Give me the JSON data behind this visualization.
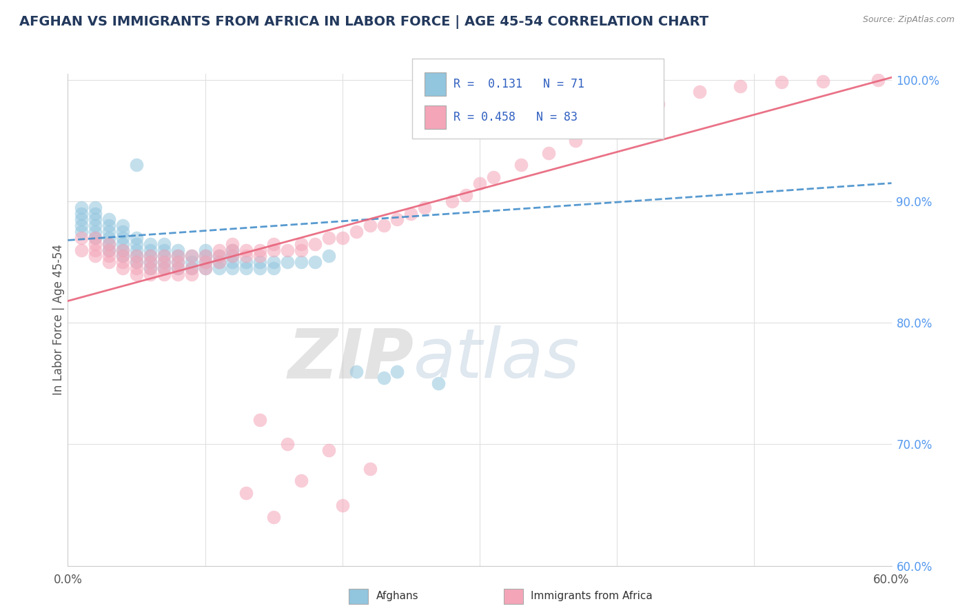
{
  "title": "AFGHAN VS IMMIGRANTS FROM AFRICA IN LABOR FORCE | AGE 45-54 CORRELATION CHART",
  "source": "Source: ZipAtlas.com",
  "ylabel": "In Labor Force | Age 45-54",
  "xlim": [
    0.0,
    0.6
  ],
  "ylim": [
    0.6,
    1.005
  ],
  "xticks": [
    0.0,
    0.1,
    0.2,
    0.3,
    0.4,
    0.5,
    0.6
  ],
  "xtick_labels": [
    "0.0%",
    "",
    "",
    "",
    "",
    "",
    "60.0%"
  ],
  "ytick_labels_right": [
    "60.0%",
    "70.0%",
    "80.0%",
    "90.0%",
    "100.0%"
  ],
  "ytick_positions_right": [
    0.6,
    0.7,
    0.8,
    0.9,
    1.0
  ],
  "legend1_R": "0.131",
  "legend1_N": "71",
  "legend2_R": "0.458",
  "legend2_N": "83",
  "legend1_label": "Afghans",
  "legend2_label": "Immigrants from Africa",
  "blue_color": "#92c5de",
  "pink_color": "#f4a5b8",
  "blue_line_color": "#3a88c8",
  "pink_line_color": "#e8637a",
  "title_color": "#23395d",
  "source_color": "#888888",
  "r_value_color": "#3060c0",
  "watermark_color": "#d8d8d8",
  "background_color": "#ffffff",
  "grid_color": "#e0e0e0",
  "blue_scatter_x": [
    0.01,
    0.01,
    0.01,
    0.01,
    0.01,
    0.02,
    0.02,
    0.02,
    0.02,
    0.02,
    0.02,
    0.03,
    0.03,
    0.03,
    0.03,
    0.03,
    0.03,
    0.04,
    0.04,
    0.04,
    0.04,
    0.04,
    0.04,
    0.05,
    0.05,
    0.05,
    0.05,
    0.05,
    0.05,
    0.06,
    0.06,
    0.06,
    0.06,
    0.06,
    0.07,
    0.07,
    0.07,
    0.07,
    0.07,
    0.08,
    0.08,
    0.08,
    0.08,
    0.09,
    0.09,
    0.09,
    0.1,
    0.1,
    0.1,
    0.1,
    0.11,
    0.11,
    0.11,
    0.12,
    0.12,
    0.12,
    0.12,
    0.13,
    0.13,
    0.14,
    0.14,
    0.15,
    0.15,
    0.16,
    0.17,
    0.18,
    0.19,
    0.21,
    0.23,
    0.24,
    0.27
  ],
  "blue_scatter_y": [
    0.875,
    0.88,
    0.885,
    0.89,
    0.895,
    0.87,
    0.875,
    0.88,
    0.885,
    0.89,
    0.895,
    0.86,
    0.865,
    0.87,
    0.875,
    0.88,
    0.885,
    0.855,
    0.86,
    0.865,
    0.87,
    0.875,
    0.88,
    0.85,
    0.855,
    0.86,
    0.865,
    0.87,
    0.93,
    0.845,
    0.85,
    0.855,
    0.86,
    0.865,
    0.845,
    0.85,
    0.855,
    0.86,
    0.865,
    0.845,
    0.85,
    0.855,
    0.86,
    0.845,
    0.85,
    0.855,
    0.845,
    0.85,
    0.855,
    0.86,
    0.845,
    0.85,
    0.855,
    0.845,
    0.85,
    0.855,
    0.86,
    0.845,
    0.85,
    0.845,
    0.85,
    0.845,
    0.85,
    0.85,
    0.85,
    0.85,
    0.855,
    0.76,
    0.755,
    0.76,
    0.75
  ],
  "pink_scatter_x": [
    0.01,
    0.01,
    0.02,
    0.02,
    0.02,
    0.02,
    0.03,
    0.03,
    0.03,
    0.03,
    0.04,
    0.04,
    0.04,
    0.04,
    0.05,
    0.05,
    0.05,
    0.05,
    0.06,
    0.06,
    0.06,
    0.06,
    0.07,
    0.07,
    0.07,
    0.07,
    0.08,
    0.08,
    0.08,
    0.08,
    0.09,
    0.09,
    0.09,
    0.1,
    0.1,
    0.1,
    0.11,
    0.11,
    0.11,
    0.12,
    0.12,
    0.12,
    0.13,
    0.13,
    0.14,
    0.14,
    0.15,
    0.15,
    0.16,
    0.17,
    0.17,
    0.18,
    0.19,
    0.2,
    0.21,
    0.22,
    0.23,
    0.24,
    0.25,
    0.26,
    0.28,
    0.29,
    0.3,
    0.31,
    0.33,
    0.35,
    0.37,
    0.39,
    0.41,
    0.43,
    0.46,
    0.49,
    0.52,
    0.55,
    0.59,
    0.14,
    0.16,
    0.19,
    0.22,
    0.13,
    0.15,
    0.17,
    0.2
  ],
  "pink_scatter_y": [
    0.86,
    0.87,
    0.855,
    0.86,
    0.865,
    0.87,
    0.85,
    0.855,
    0.86,
    0.865,
    0.845,
    0.85,
    0.855,
    0.86,
    0.84,
    0.845,
    0.85,
    0.855,
    0.84,
    0.845,
    0.85,
    0.855,
    0.84,
    0.845,
    0.85,
    0.855,
    0.84,
    0.845,
    0.85,
    0.855,
    0.84,
    0.845,
    0.855,
    0.845,
    0.85,
    0.855,
    0.85,
    0.855,
    0.86,
    0.855,
    0.86,
    0.865,
    0.855,
    0.86,
    0.855,
    0.86,
    0.86,
    0.865,
    0.86,
    0.86,
    0.865,
    0.865,
    0.87,
    0.87,
    0.875,
    0.88,
    0.88,
    0.885,
    0.89,
    0.895,
    0.9,
    0.905,
    0.915,
    0.92,
    0.93,
    0.94,
    0.95,
    0.96,
    0.97,
    0.98,
    0.99,
    0.995,
    0.998,
    0.999,
    1.0,
    0.72,
    0.7,
    0.695,
    0.68,
    0.66,
    0.64,
    0.67,
    0.65
  ],
  "blue_trend_x": [
    0.0,
    0.6
  ],
  "blue_trend_y": [
    0.868,
    0.915
  ],
  "pink_trend_x": [
    0.0,
    0.6
  ],
  "pink_trend_y": [
    0.818,
    1.002
  ]
}
